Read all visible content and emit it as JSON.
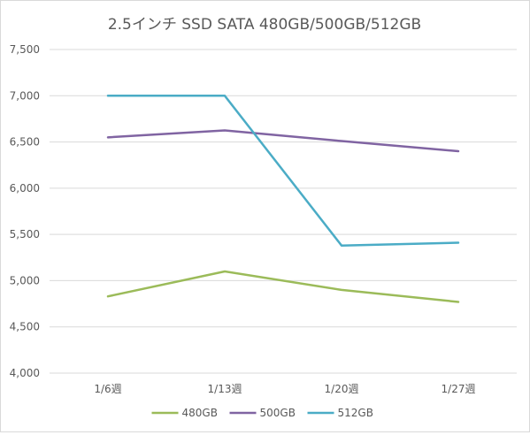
{
  "chart_data": {
    "type": "line",
    "title": "2.5インチ SSD SATA 480GB/500GB/512GB",
    "xlabel": "",
    "ylabel": "",
    "categories": [
      "1/6週",
      "1/13週",
      "1/20週",
      "1/27週"
    ],
    "ylim": [
      4000,
      7500
    ],
    "yticks": [
      "4,000",
      "4,500",
      "5,000",
      "5,500",
      "6,000",
      "6,500",
      "7,000",
      "7,500"
    ],
    "ytick_values": [
      4000,
      4500,
      5000,
      5500,
      6000,
      6500,
      7000,
      7500
    ],
    "grid": true,
    "legend_position": "bottom",
    "series": [
      {
        "name": "480GB",
        "color": "#9bbb59",
        "values": [
          4830,
          5100,
          4900,
          4770
        ]
      },
      {
        "name": "500GB",
        "color": "#8064a2",
        "values": [
          6550,
          6625,
          6510,
          6400
        ]
      },
      {
        "name": "512GB",
        "color": "#4bacc6",
        "values": [
          7000,
          7000,
          5380,
          5410
        ]
      }
    ]
  }
}
